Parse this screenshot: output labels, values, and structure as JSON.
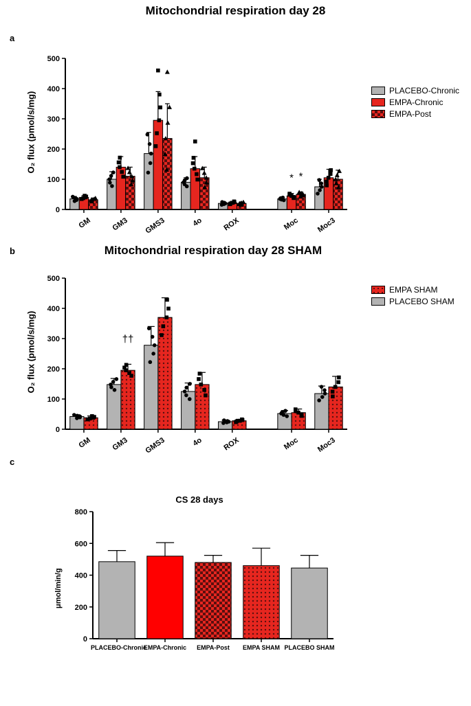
{
  "figure_title": "Mitochondrial respiration day 28",
  "panel_a": {
    "label": "a",
    "type": "bar",
    "ylabel": "O₂ flux (pmol/s/mg)",
    "ylim": [
      0,
      500
    ],
    "ytick_step": 100,
    "categories": [
      "GM",
      "GM3",
      "GMS3",
      "4o",
      "ROX",
      "Moc",
      "Moc3"
    ],
    "series": [
      {
        "name": "PLACEBO-Chronic",
        "fill": "#b3b3b3",
        "pattern": "none",
        "values": [
          35,
          100,
          185,
          90,
          20,
          35,
          75
        ],
        "err": [
          8,
          25,
          70,
          15,
          5,
          5,
          25
        ],
        "jitter_marker": "circle"
      },
      {
        "name": "EMPA-Chronic",
        "fill": "#e6261f",
        "pattern": "none",
        "values": [
          40,
          140,
          295,
          135,
          22,
          45,
          105
        ],
        "err": [
          6,
          35,
          95,
          40,
          5,
          8,
          28
        ],
        "jitter_marker": "square"
      },
      {
        "name": "EMPA-Post",
        "fill": "#e6261f",
        "pattern": "checker",
        "values": [
          32,
          110,
          235,
          105,
          20,
          50,
          100
        ],
        "err": [
          6,
          30,
          115,
          35,
          5,
          8,
          30
        ],
        "jitter_marker": "triangle"
      }
    ],
    "annotations": [
      {
        "text": "*",
        "group": 5,
        "series": 1,
        "dy": -18
      },
      {
        "text": "*",
        "group": 5,
        "series": 2,
        "dy": -18
      }
    ],
    "high_points": [
      {
        "group": 2,
        "series": 1,
        "y": 460,
        "marker": "square"
      },
      {
        "group": 2,
        "series": 2,
        "y": 455,
        "marker": "triangle"
      },
      {
        "group": 3,
        "series": 1,
        "y": 225,
        "marker": "square"
      }
    ],
    "legend": {
      "items": [
        "PLACEBO-Chronic",
        "EMPA-Chronic",
        "EMPA-Post"
      ]
    }
  },
  "panel_b": {
    "label": "b",
    "title": "Mitochondrial respiration day 28 SHAM",
    "type": "bar",
    "ylabel": "O₂ flux (pmol/s/mg)",
    "ylim": [
      0,
      500
    ],
    "ytick_step": 100,
    "categories": [
      "GM",
      "GM3",
      "GMS3",
      "4o",
      "ROX",
      "Moc",
      "Moc3"
    ],
    "series": [
      {
        "name": "PLACEBO SHAM",
        "fill": "#b3b3b3",
        "pattern": "none",
        "values": [
          42,
          148,
          278,
          125,
          25,
          52,
          118
        ],
        "err": [
          6,
          20,
          62,
          28,
          5,
          10,
          25
        ],
        "jitter_marker": "circle"
      },
      {
        "name": "EMPA SHAM",
        "fill": "#e6261f",
        "pattern": "dots",
        "values": [
          38,
          195,
          370,
          148,
          28,
          55,
          140
        ],
        "err": [
          6,
          20,
          65,
          40,
          5,
          12,
          35
        ],
        "jitter_marker": "square"
      }
    ],
    "annotations": [
      {
        "text": "††",
        "group": 1,
        "series": 1,
        "dy": -32,
        "center_offset": 0
      },
      {
        "text": "†",
        "group": 2,
        "series": 1,
        "dy": -55,
        "center_offset": 0
      }
    ],
    "legend": {
      "items": [
        "EMPA SHAM",
        "PLACEBO SHAM"
      ]
    }
  },
  "panel_c": {
    "label": "c",
    "title": "CS 28 days",
    "type": "bar",
    "ylabel": "μmol/min/g",
    "ylim": [
      0,
      800
    ],
    "ytick_step": 200,
    "categories": [
      "PLACEBO-Chronic",
      "EMPA-Chronic",
      "EMPA-Post",
      "EMPA SHAM",
      "PLACEBO SHAM"
    ],
    "series": [
      {
        "name": "CS",
        "fills": [
          "#b3b3b3",
          "#ff0000",
          "#e6261f",
          "#e6261f",
          "#b3b3b3"
        ],
        "patterns": [
          "none",
          "none",
          "checker",
          "dots",
          "none"
        ],
        "values": [
          485,
          520,
          480,
          460,
          445
        ],
        "err": [
          70,
          85,
          45,
          110,
          80
        ]
      }
    ]
  },
  "colors": {
    "axis": "#000000",
    "err": "#000000",
    "pattern_dark": "#5a0f0f"
  }
}
